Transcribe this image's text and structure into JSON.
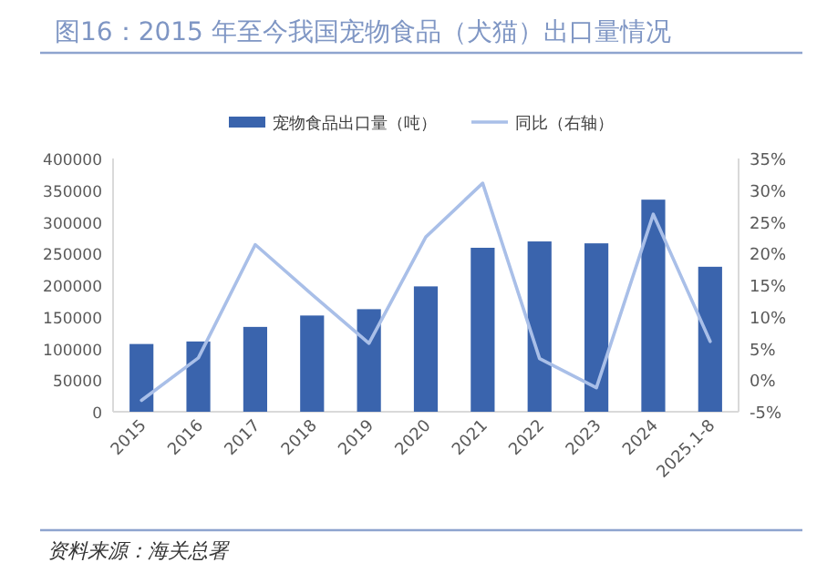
{
  "chart_data": {
    "type": "bar",
    "title": "图16：2015 年至今我国宠物食品（犬猫）出口量情况",
    "categories": [
      "2015",
      "2016",
      "2017",
      "2018",
      "2019",
      "2020",
      "2021",
      "2022",
      "2023",
      "2024",
      "2025.1-8"
    ],
    "series": [
      {
        "name": "宠物食品出口量（吨）",
        "color": "#3a64ad",
        "values": [
          107000,
          111000,
          134000,
          152000,
          162000,
          198000,
          259000,
          269000,
          266000,
          335000,
          229000
        ]
      },
      {
        "name": "同比（右轴）",
        "type": "line",
        "axis": "y2",
        "color": "#a9bfe8",
        "values": [
          -3.2,
          3.5,
          21.4,
          13.5,
          5.8,
          22.6,
          31.1,
          3.4,
          -1.2,
          26.2,
          6.1
        ]
      }
    ],
    "ylim": [
      0,
      400000
    ],
    "yticks": [
      0,
      50000,
      100000,
      150000,
      200000,
      250000,
      300000,
      350000,
      400000
    ],
    "y2lim": [
      -5,
      35
    ],
    "y2ticks": [
      {
        "value": -5,
        "label": "-5%"
      },
      {
        "value": 0,
        "label": "0%"
      },
      {
        "value": 5,
        "label": "5%"
      },
      {
        "value": 10,
        "label": "10%"
      },
      {
        "value": 15,
        "label": "15%"
      },
      {
        "value": 20,
        "label": "20%"
      },
      {
        "value": 25,
        "label": "25%"
      },
      {
        "value": 30,
        "label": "30%"
      },
      {
        "value": 35,
        "label": "35%"
      }
    ],
    "legend": "top",
    "grid": false,
    "annotations": [
      "资料来源：海关总署"
    ]
  }
}
